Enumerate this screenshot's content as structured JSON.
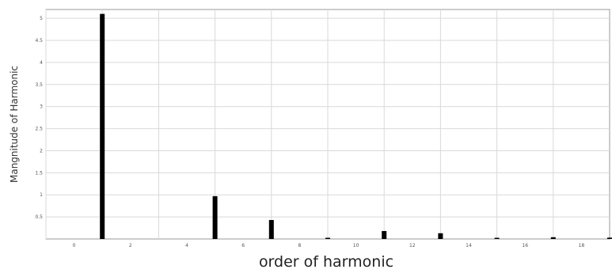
{
  "chart_data": {
    "type": "bar",
    "xlabel": "order of harmonic",
    "ylabel": "Mangnitude of Harmonic",
    "xlim": [
      -1,
      19
    ],
    "ylim": [
      0,
      5.2
    ],
    "grid": true,
    "x_ticks": [
      0,
      2,
      4,
      6,
      8,
      10,
      12,
      14,
      16,
      18
    ],
    "y_ticks": [
      0.5,
      1,
      1.5,
      2,
      2.5,
      3,
      3.5,
      4,
      4.5,
      5
    ],
    "x_tick_labels": [
      "0",
      "2",
      "4",
      "6",
      "8",
      "10",
      "12",
      "14",
      "16",
      "18"
    ],
    "y_tick_labels": [
      "0.5",
      "1",
      "1.5",
      "2",
      "2.5",
      "3",
      "3.5",
      "4",
      "4.5",
      "5"
    ],
    "bar_color": "#000000",
    "grid_color": "#d9d9d9",
    "x": [
      1,
      5,
      7,
      9,
      11,
      13,
      15,
      17,
      19
    ],
    "values": [
      5.1,
      0.97,
      0.43,
      0.02,
      0.18,
      0.13,
      0.02,
      0.04,
      0.03
    ]
  }
}
